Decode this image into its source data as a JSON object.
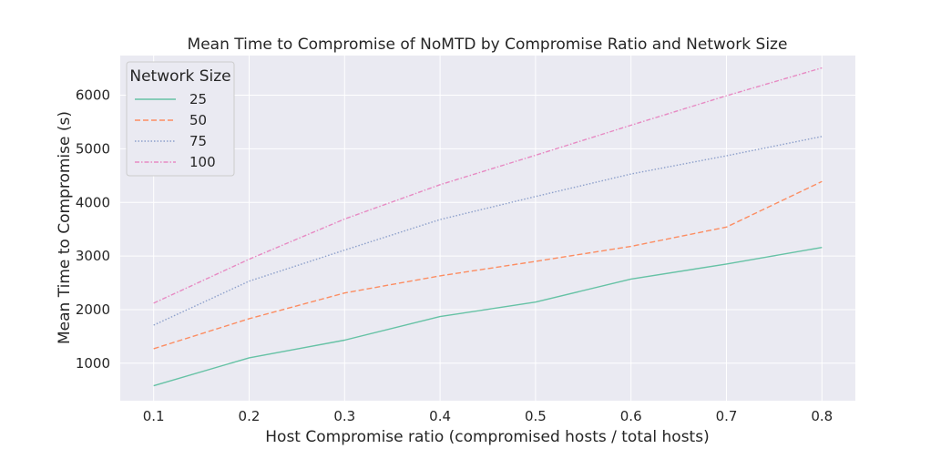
{
  "chart_data": {
    "type": "line",
    "title": "Mean Time to Compromise of NoMTD by Compromise Ratio and Network Size",
    "xlabel": "Host Compromise ratio (compromised hosts / total hosts)",
    "ylabel": "Mean Time to Compromise (s)",
    "x": [
      0.1,
      0.2,
      0.3,
      0.4,
      0.5,
      0.6,
      0.7,
      0.8
    ],
    "xticks": [
      "0.1",
      "0.2",
      "0.3",
      "0.4",
      "0.5",
      "0.6",
      "0.7",
      "0.8"
    ],
    "yticks": [
      "1000",
      "2000",
      "3000",
      "4000",
      "5000",
      "6000"
    ],
    "xlim": [
      0.065,
      0.835
    ],
    "ylim": [
      300,
      6740
    ],
    "grid": true,
    "legend": {
      "title": "Network Size",
      "position": "top-left"
    },
    "series": [
      {
        "name": "25",
        "color": "#66c2a5",
        "dash": "solid",
        "values": [
          580,
          1100,
          1430,
          1870,
          2140,
          2570,
          2850,
          3160
        ]
      },
      {
        "name": "50",
        "color": "#fc8d62",
        "dash": "dashed",
        "values": [
          1270,
          1830,
          2310,
          2630,
          2900,
          3180,
          3540,
          4390
        ]
      },
      {
        "name": "75",
        "color": "#8da0cb",
        "dash": "dotted",
        "values": [
          1710,
          2530,
          3110,
          3680,
          4110,
          4530,
          4870,
          5230
        ]
      },
      {
        "name": "100",
        "color": "#e78ac3",
        "dash": "dashdot",
        "values": [
          2120,
          2940,
          3690,
          4330,
          4880,
          5440,
          5990,
          6510
        ]
      }
    ]
  }
}
